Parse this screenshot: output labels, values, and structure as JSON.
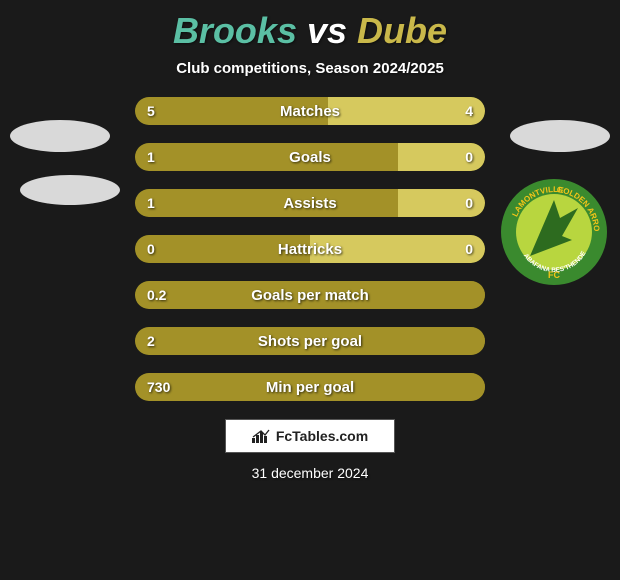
{
  "title": {
    "player1": "Brooks",
    "vs": "vs",
    "player2": "Dube",
    "color1": "#5bbfa4",
    "color2": "#c9b84a",
    "fontsize": 36
  },
  "subtitle": {
    "text": "Club competitions, Season 2024/2025",
    "fontsize": 15
  },
  "bars": {
    "track_color": "#6b6b1a",
    "left_color": "#a39128",
    "right_color": "#d6c95e",
    "label_fontsize": 15,
    "value_fontsize": 14,
    "rows": [
      {
        "label": "Matches",
        "left": "5",
        "right": "4",
        "left_pct": 55,
        "right_pct": 45
      },
      {
        "label": "Goals",
        "left": "1",
        "right": "0",
        "left_pct": 75,
        "right_pct": 25
      },
      {
        "label": "Assists",
        "left": "1",
        "right": "0",
        "left_pct": 75,
        "right_pct": 25
      },
      {
        "label": "Hattricks",
        "left": "0",
        "right": "0",
        "left_pct": 50,
        "right_pct": 50
      },
      {
        "label": "Goals per match",
        "left": "0.2",
        "right": "",
        "left_pct": 100,
        "right_pct": 0
      },
      {
        "label": "Shots per goal",
        "left": "2",
        "right": "",
        "left_pct": 100,
        "right_pct": 0
      },
      {
        "label": "Min per goal",
        "left": "730",
        "right": "",
        "left_pct": 100,
        "right_pct": 0
      }
    ]
  },
  "badge": {
    "outer": "#3a8a2e",
    "inner": "#b8d63f",
    "arrow": "#2d6b1f",
    "top_text": "LAMONTVILLE",
    "mid_text": "GOLDEN ARROWS",
    "bottom_text": "ABAFANA BES'THENDE",
    "fc": "FC",
    "text_color": "#f5c518",
    "text_color2": "#ffffff"
  },
  "logo": {
    "text": "FcTables.com",
    "fontsize": 14
  },
  "date": {
    "text": "31 december 2024",
    "fontsize": 14
  }
}
